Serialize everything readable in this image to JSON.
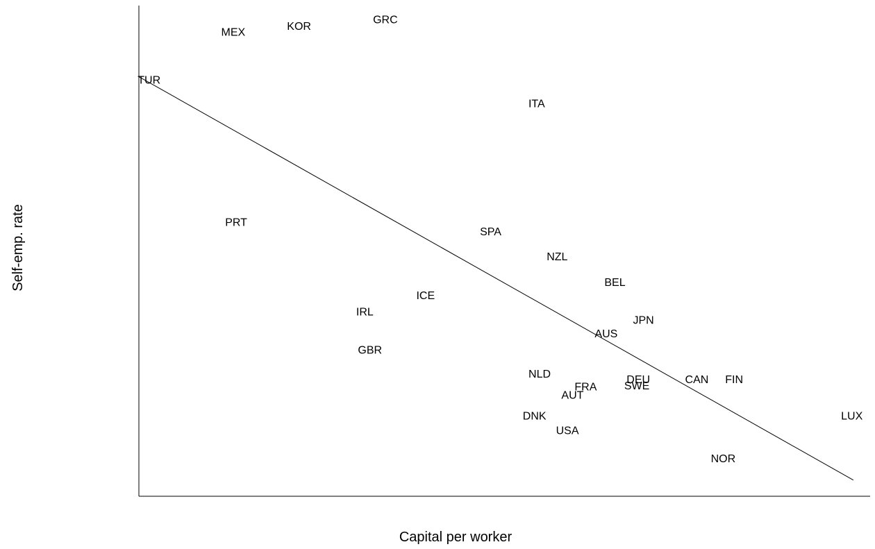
{
  "chart_data": {
    "type": "scatter",
    "xlabel": "Capital per worker",
    "ylabel": "Self-emp. rate",
    "xlim": [
      0,
      100
    ],
    "ylim": [
      0,
      100
    ],
    "grid": false,
    "legend": "none",
    "tick_labels": false,
    "points": [
      {
        "label": "MEX",
        "x": 12.9,
        "y": 94.5
      },
      {
        "label": "KOR",
        "x": 21.9,
        "y": 95.7
      },
      {
        "label": "GRC",
        "x": 33.7,
        "y": 97.0
      },
      {
        "label": "TUR",
        "x": 1.4,
        "y": 84.7
      },
      {
        "label": "ITA",
        "x": 54.4,
        "y": 79.9
      },
      {
        "label": "PRT",
        "x": 13.3,
        "y": 55.7
      },
      {
        "label": "SPA",
        "x": 48.1,
        "y": 53.8
      },
      {
        "label": "NZL",
        "x": 57.2,
        "y": 48.7
      },
      {
        "label": "BEL",
        "x": 65.1,
        "y": 43.5
      },
      {
        "label": "ICE",
        "x": 39.2,
        "y": 40.8
      },
      {
        "label": "IRL",
        "x": 30.9,
        "y": 37.5
      },
      {
        "label": "JPN",
        "x": 69.0,
        "y": 35.8
      },
      {
        "label": "AUS",
        "x": 63.9,
        "y": 33.0
      },
      {
        "label": "GBR",
        "x": 31.6,
        "y": 29.7
      },
      {
        "label": "NLD",
        "x": 54.8,
        "y": 24.8
      },
      {
        "label": "DEU",
        "x": 68.3,
        "y": 23.7
      },
      {
        "label": "CAN",
        "x": 76.3,
        "y": 23.7
      },
      {
        "label": "FIN",
        "x": 81.4,
        "y": 23.7
      },
      {
        "label": "FRA",
        "x": 61.1,
        "y": 22.2
      },
      {
        "label": "SWE",
        "x": 68.1,
        "y": 22.4
      },
      {
        "label": "AUT",
        "x": 59.3,
        "y": 20.5
      },
      {
        "label": "DNK",
        "x": 54.1,
        "y": 16.3
      },
      {
        "label": "USA",
        "x": 58.6,
        "y": 13.3
      },
      {
        "label": "LUX",
        "x": 97.5,
        "y": 16.3
      },
      {
        "label": "NOR",
        "x": 79.9,
        "y": 7.6
      }
    ],
    "fit_line": {
      "x": [
        0,
        97.7
      ],
      "y": [
        85.5,
        3.3
      ]
    }
  }
}
